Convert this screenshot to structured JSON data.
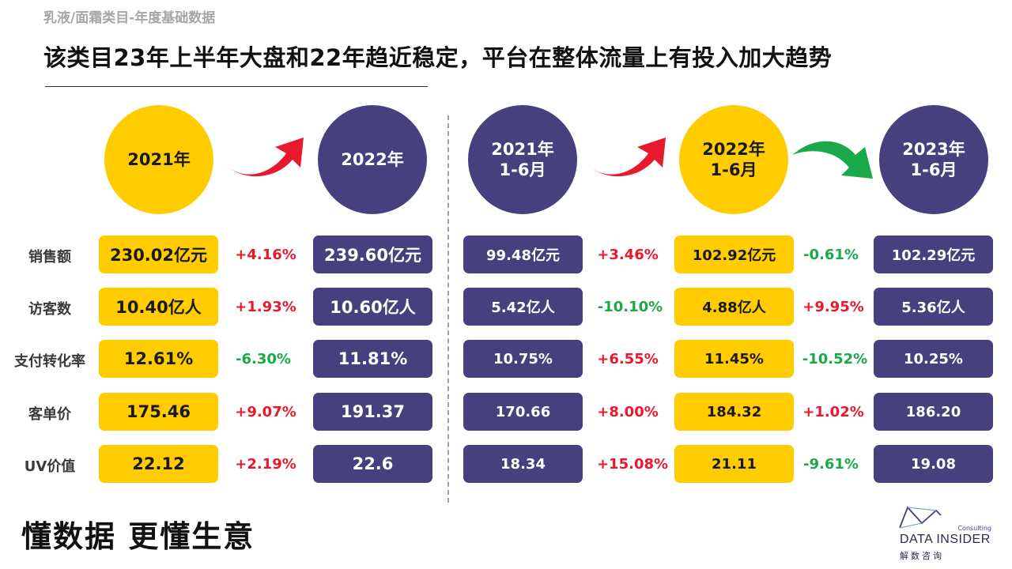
{
  "header": {
    "subtitle": "乳液/面霜类目-年度基础数据",
    "headline": "该类目23年上半年大盘和22年趋近稳定，平台在整体流量上有投入加大趋势"
  },
  "periods": [
    {
      "line1": "2021年",
      "line2": ""
    },
    {
      "line1": "2022年",
      "line2": ""
    },
    {
      "line1": "2021年",
      "line2": "1-6月"
    },
    {
      "line1": "2022年",
      "line2": "1-6月"
    },
    {
      "line1": "2023年",
      "line2": "1-6月"
    }
  ],
  "rows": [
    {
      "label": "销售额",
      "v": [
        "230.02亿元",
        "239.60亿元",
        "99.48亿元",
        "102.92亿元",
        "102.29亿元"
      ],
      "c": [
        "+4.16%",
        "+3.46%",
        "-0.61%"
      ]
    },
    {
      "label": "访客数",
      "v": [
        "10.40亿人",
        "10.60亿人",
        "5.42亿人",
        "4.88亿人",
        "5.36亿人"
      ],
      "c": [
        "+1.93%",
        "-10.10%",
        "+9.95%"
      ]
    },
    {
      "label": "支付转化率",
      "v": [
        "12.61%",
        "11.81%",
        "10.75%",
        "11.45%",
        "10.25%"
      ],
      "c": [
        "-6.30%",
        "+6.55%",
        "-10.52%"
      ]
    },
    {
      "label": "客单价",
      "v": [
        "175.46",
        "191.37",
        "170.66",
        "184.32",
        "186.20"
      ],
      "c": [
        "+9.07%",
        "+8.00%",
        "+1.02%"
      ]
    },
    {
      "label": "UV价值",
      "v": [
        "22.12",
        "22.6",
        "18.34",
        "21.11",
        "19.08"
      ],
      "c": [
        "+2.19%",
        "+15.08%",
        "-9.61%"
      ]
    }
  ],
  "footer": {
    "slogan": "懂数据 更懂生意",
    "logo_consulting": "Consulting",
    "logo_name": "DATA INSIDER",
    "logo_cn": "解数咨询"
  },
  "colors": {
    "yellow": "#ffcc00",
    "purple": "#46407e",
    "increase_red": "#e8192c",
    "decrease_green": "#19a94a"
  }
}
